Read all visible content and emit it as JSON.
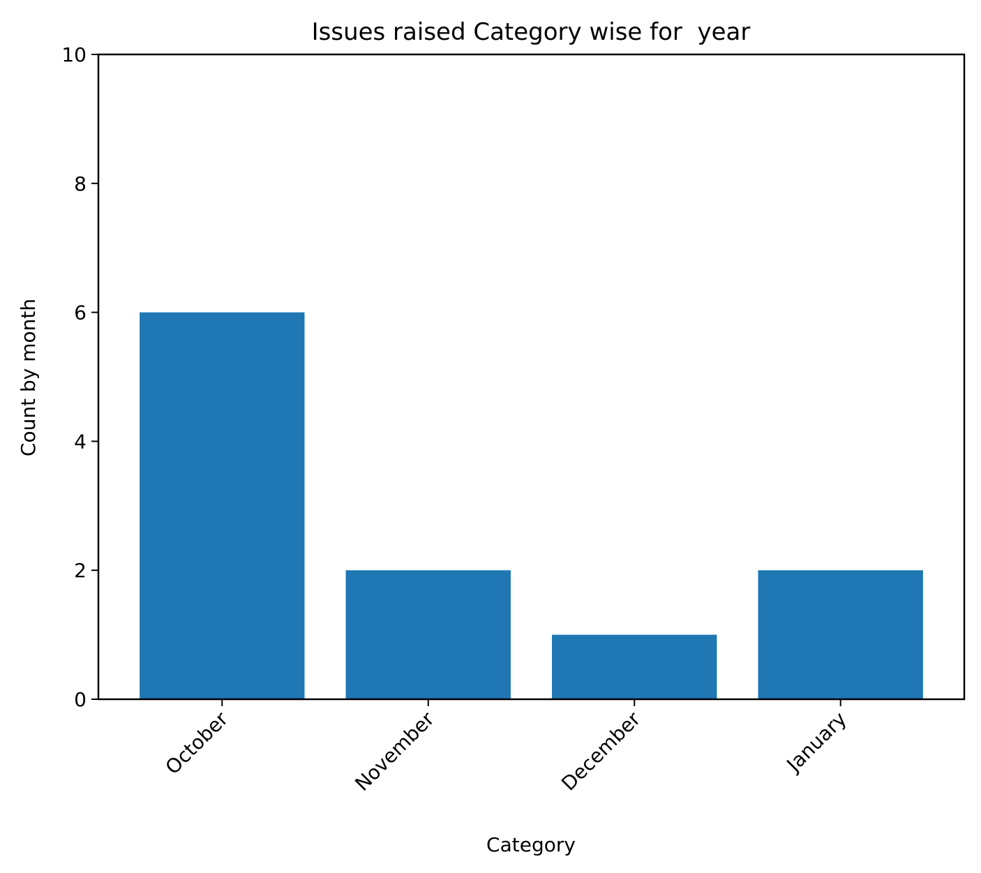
{
  "chart_data": {
    "type": "bar",
    "title": "Issues raised Category wise for  year",
    "xlabel": "Category",
    "ylabel": "Count by month",
    "categories": [
      "October",
      "November",
      "December",
      "January"
    ],
    "values": [
      6,
      2,
      1,
      2
    ],
    "ylim": [
      0,
      10
    ],
    "yticks": [
      0,
      2,
      4,
      6,
      8,
      10
    ],
    "bar_color": "#1f77b4",
    "grid": false,
    "legend": "none",
    "xtick_rotation": 45
  }
}
